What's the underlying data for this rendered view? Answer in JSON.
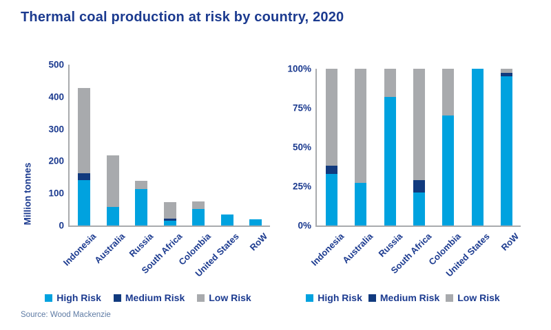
{
  "title": "Thermal coal production at risk by country, 2020",
  "source": "Source: Wood Mackenzie",
  "colors": {
    "title_text": "#1B3A8F",
    "axis_text": "#1B3A8F",
    "axis_line": "#A8AAAD",
    "high_risk": "#00A2DF",
    "medium_risk": "#113A7E",
    "low_risk": "#A8AAAD",
    "source_text": "#5E7BA4",
    "background": "#FFFFFF"
  },
  "legend": [
    "High Risk",
    "Medium Risk",
    "Low Risk"
  ],
  "chart_data": [
    {
      "id": "production-at-risk-absolute",
      "type": "bar",
      "stacked": true,
      "title": "",
      "xlabel": "",
      "ylabel": "Million tonnes",
      "categories": [
        "Indonesia",
        "Australia",
        "Russia",
        "South Africa",
        "Colombia",
        "United States",
        "RoW"
      ],
      "series": [
        {
          "name": "High Risk",
          "color": "#00A2DF",
          "values": [
            140,
            58,
            113,
            15,
            52,
            35,
            18.5
          ]
        },
        {
          "name": "Medium Risk",
          "color": "#113A7E",
          "values": [
            23,
            0,
            0,
            6,
            0,
            0,
            0.5
          ]
        },
        {
          "name": "Low Risk",
          "color": "#A8AAAD",
          "values": [
            265,
            160,
            26,
            51,
            23,
            0,
            1
          ]
        }
      ],
      "ylim": [
        0,
        500
      ],
      "yticks": [
        0,
        100,
        200,
        300,
        400,
        500
      ],
      "ytick_labels": [
        "0",
        "100",
        "200",
        "300",
        "400",
        "500"
      ],
      "grid": false,
      "legend_position": "bottom"
    },
    {
      "id": "production-at-risk-percent",
      "type": "bar",
      "stacked": true,
      "title": "",
      "xlabel": "",
      "ylabel": "",
      "categories": [
        "Indonesia",
        "Australia",
        "Russia",
        "South Africa",
        "Colombia",
        "United States",
        "RoW"
      ],
      "series": [
        {
          "name": "High Risk",
          "color": "#00A2DF",
          "values": [
            33,
            27,
            82,
            21,
            70,
            100,
            95
          ]
        },
        {
          "name": "Medium Risk",
          "color": "#113A7E",
          "values": [
            5,
            0,
            0,
            8,
            0,
            0,
            2.5
          ]
        },
        {
          "name": "Low Risk",
          "color": "#A8AAAD",
          "values": [
            62,
            73,
            18,
            71,
            30,
            0,
            2.5
          ]
        }
      ],
      "ylim": [
        0,
        100
      ],
      "yticks": [
        0,
        25,
        50,
        75,
        100
      ],
      "ytick_labels": [
        "0%",
        "25%",
        "50%",
        "75%",
        "100%"
      ],
      "grid": false,
      "legend_position": "bottom"
    }
  ]
}
